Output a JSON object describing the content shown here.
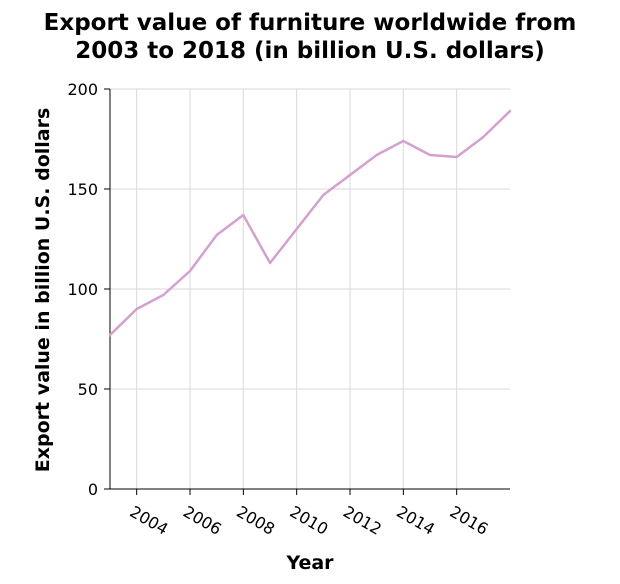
{
  "chart_data": {
    "type": "line",
    "title": "Export value of furniture worldwide from 2003 to 2018 (in billion U.S. dollars)",
    "title_lines": [
      "Export value of furniture worldwide from",
      "2003 to 2018 (in billion U.S. dollars)"
    ],
    "xlabel": "Year",
    "ylabel": "Export value in billion U.S. dollars",
    "xlim": [
      2003,
      2018
    ],
    "ylim": [
      0,
      200
    ],
    "x_ticks": [
      2004,
      2006,
      2008,
      2010,
      2012,
      2014,
      2016
    ],
    "y_ticks": [
      0,
      50,
      100,
      150,
      200
    ],
    "grid": true,
    "series": [
      {
        "color": "#d4a1cf",
        "x": [
          2003,
          2004,
          2005,
          2006,
          2007,
          2008,
          2009,
          2010,
          2011,
          2012,
          2013,
          2014,
          2015,
          2016,
          2017,
          2018
        ],
        "y": [
          77,
          90,
          97,
          109,
          127,
          137,
          113,
          130,
          147,
          157,
          167,
          174,
          167,
          166,
          176,
          189
        ]
      }
    ]
  }
}
